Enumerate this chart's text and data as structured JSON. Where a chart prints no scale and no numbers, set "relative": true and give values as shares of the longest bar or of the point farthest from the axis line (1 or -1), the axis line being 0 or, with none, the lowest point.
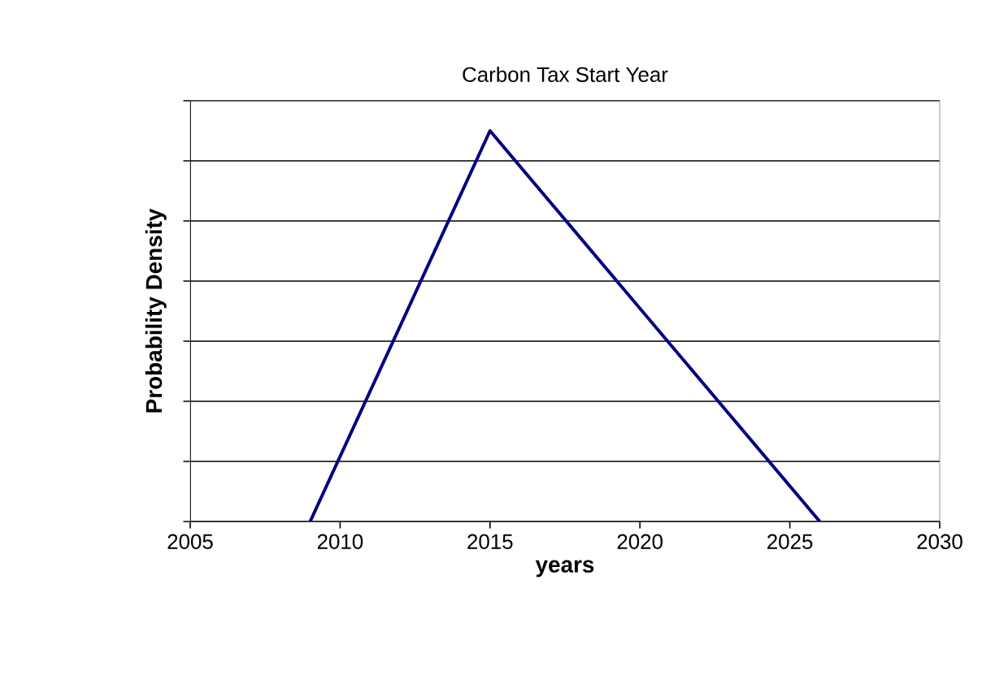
{
  "chart_data": {
    "type": "line",
    "title": "Carbon Tax Start Year",
    "xlabel": "**years**",
    "ylabel": "**Probability Density**",
    "x": [
      2009,
      2015,
      2026
    ],
    "series": [
      {
        "color": "#000080",
        "values": [
          0,
          1,
          0
        ]
      }
    ],
    "relative": true,
    "xlim": [
      2005,
      2030
    ],
    "xticks": [
      2005,
      2010,
      2015,
      2020,
      2025,
      2030
    ],
    "grid": "y",
    "marker": "none",
    "line_style": "solid"
  }
}
